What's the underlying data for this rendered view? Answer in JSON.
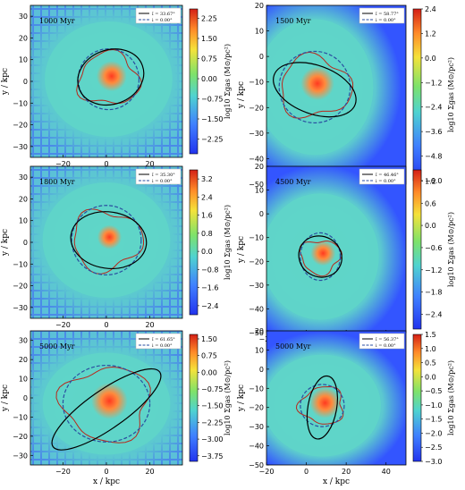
{
  "colors": {
    "outer": "#3355ff",
    "background": "#5fd6c8",
    "core": "#ff5a3c",
    "contour": "#b8281c",
    "fit": "#000000",
    "reference": "#2a4ea0"
  },
  "labels": {
    "xlabel": "x / kpc",
    "ylabel": "y / kpc",
    "colorbar": "log10 Σgas (M⊙/pc²)"
  },
  "chart_data": [
    {
      "type": "heatmap",
      "time_label": "1000 Myr",
      "xlim": [
        -35,
        35
      ],
      "ylim": [
        -35,
        35
      ],
      "xticks": [
        "−20",
        "0",
        "20"
      ],
      "xtick_values": [
        -20,
        0,
        20
      ],
      "yticks": [
        "−30",
        "−20",
        "−10",
        "0",
        "10",
        "20",
        "30"
      ],
      "ytick_values": [
        -30,
        -20,
        -10,
        0,
        10,
        20,
        30
      ],
      "colorbar_ticks": [
        "2.25",
        "1.50",
        "0.75",
        "0.00",
        "−0.75",
        "−1.50",
        "−2.25"
      ],
      "colorbar_range": [
        -2.8,
        2.6
      ],
      "colorbar_tick_values": [
        2.25,
        1.5,
        0.75,
        0,
        -0.75,
        -1.5,
        -2.25
      ],
      "legend": [
        {
          "label": "î = 33.67°",
          "style": "solid"
        },
        {
          "label": "i = 0.00°",
          "style": "dashed"
        }
      ],
      "fit_ellipse": {
        "cx": 2,
        "cy": 2,
        "a": 15.5,
        "b": 12.5,
        "angle": 20
      },
      "ref_ellipse": {
        "cx": 1,
        "cy": 1,
        "a": 14,
        "b": 14,
        "angle": 0
      }
    },
    {
      "type": "heatmap",
      "time_label": "1500 Myr",
      "xlim": [
        -5,
        50
      ],
      "ylim": [
        -50,
        20
      ],
      "xticks": [
        "0",
        "20",
        "40"
      ],
      "xtick_values": [
        0,
        20,
        40
      ],
      "yticks": [
        "−50",
        "−40",
        "−30",
        "−20",
        "−10",
        "0",
        "10",
        "20"
      ],
      "ytick_values": [
        -50,
        -40,
        -30,
        -20,
        -10,
        0,
        10,
        20
      ],
      "colorbar_ticks": [
        "2.4",
        "1.2",
        "0.0",
        "−1.2",
        "−2.4",
        "−3.6",
        "−4.8",
        "−6.0"
      ],
      "colorbar_range": [
        -6,
        2.4
      ],
      "colorbar_tick_values": [
        2.4,
        1.2,
        0,
        -1.2,
        -2.4,
        -3.6,
        -4.8,
        -6
      ],
      "legend": [
        {
          "label": "î = 58.77°",
          "style": "solid"
        },
        {
          "label": "i = 0.00°",
          "style": "dashed"
        }
      ],
      "fit_ellipse": {
        "cx": 14,
        "cy": -13,
        "a": 17,
        "b": 9.5,
        "angle": -20
      },
      "ref_ellipse": {
        "cx": 14,
        "cy": -12,
        "a": 14,
        "b": 14,
        "angle": 0
      }
    },
    {
      "type": "heatmap",
      "time_label": "1800 Myr",
      "xlim": [
        -35,
        35
      ],
      "ylim": [
        -35,
        35
      ],
      "xticks": [
        "−20",
        "0",
        "20"
      ],
      "xtick_values": [
        -20,
        0,
        20
      ],
      "yticks": [
        "−30",
        "−20",
        "−10",
        "0",
        "10",
        "20",
        "30"
      ],
      "ytick_values": [
        -30,
        -20,
        -10,
        0,
        10,
        20,
        30
      ],
      "colorbar_ticks": [
        "3.2",
        "2.4",
        "1.6",
        "0.8",
        "0.0",
        "−0.8",
        "−1.6",
        "−2.4"
      ],
      "colorbar_range": [
        -2.8,
        3.6
      ],
      "colorbar_tick_values": [
        3.2,
        2.4,
        1.6,
        0.8,
        0,
        -0.8,
        -1.6,
        -2.4
      ],
      "legend": [
        {
          "label": "î = 35.30°",
          "style": "solid"
        },
        {
          "label": "i = 0.00°",
          "style": "dashed"
        }
      ],
      "fit_ellipse": {
        "cx": 1,
        "cy": 1,
        "a": 17.5,
        "b": 13,
        "angle": -8
      },
      "ref_ellipse": {
        "cx": 0,
        "cy": 1,
        "a": 16,
        "b": 16,
        "angle": 0
      }
    },
    {
      "type": "heatmap",
      "time_label": "4500 Myr",
      "xlim": [
        -20,
        50
      ],
      "ylim": [
        -50,
        20
      ],
      "xticks": [
        "−20",
        "0",
        "20",
        "40"
      ],
      "xtick_values": [
        -20,
        0,
        20,
        40
      ],
      "yticks": [
        "−50",
        "−40",
        "−30",
        "−20",
        "−10",
        "0",
        "10",
        "20"
      ],
      "ytick_values": [
        -50,
        -40,
        -30,
        -20,
        -10,
        0,
        10,
        20
      ],
      "colorbar_ticks": [
        "1.2",
        "0.6",
        "0.0",
        "−0.6",
        "−1.2",
        "−1.8",
        "−2.4"
      ],
      "colorbar_range": [
        -2.8,
        1.5
      ],
      "colorbar_tick_values": [
        1.2,
        0.6,
        0,
        -0.6,
        -1.2,
        -1.8,
        -2.4
      ],
      "legend": [
        {
          "label": "î = 46.46°",
          "style": "solid"
        },
        {
          "label": "i = 0.00°",
          "style": "dashed"
        }
      ],
      "fit_ellipse": {
        "cx": 7,
        "cy": -18,
        "a": 11,
        "b": 8.5,
        "angle": -30
      },
      "ref_ellipse": {
        "cx": 7,
        "cy": -18,
        "a": 10,
        "b": 10,
        "angle": 0
      }
    },
    {
      "type": "heatmap",
      "time_label": "5000 Myr",
      "xlim": [
        -35,
        35
      ],
      "ylim": [
        -35,
        35
      ],
      "xticks": [
        "−20",
        "0",
        "20"
      ],
      "xtick_values": [
        -20,
        0,
        20
      ],
      "yticks": [
        "−30",
        "−20",
        "−10",
        "0",
        "10",
        "20",
        "30"
      ],
      "ytick_values": [
        -30,
        -20,
        -10,
        0,
        10,
        20,
        30
      ],
      "colorbar_ticks": [
        "1.50",
        "0.75",
        "0.00",
        "−0.75",
        "−1.50",
        "−2.25",
        "−3.00",
        "−3.75"
      ],
      "colorbar_range": [
        -4,
        1.7
      ],
      "colorbar_tick_values": [
        1.5,
        0.75,
        0,
        -0.75,
        -1.5,
        -2.25,
        -3,
        -3.75
      ],
      "legend": [
        {
          "label": "î = 61.65°",
          "style": "solid"
        },
        {
          "label": "i = 0.00°",
          "style": "dashed"
        }
      ],
      "fit_ellipse": {
        "cx": 0,
        "cy": -6,
        "a": 30,
        "b": 10,
        "angle": 35
      },
      "ref_ellipse": {
        "cx": 0,
        "cy": -3,
        "a": 20,
        "b": 20,
        "angle": 0
      }
    },
    {
      "type": "heatmap",
      "time_label": "5000 Myr",
      "xlim": [
        -20,
        50
      ],
      "ylim": [
        -50,
        20
      ],
      "xticks": [
        "−20",
        "0",
        "20",
        "40"
      ],
      "xtick_values": [
        -20,
        0,
        20,
        40
      ],
      "yticks": [
        "−50",
        "−40",
        "−30",
        "−20",
        "−10",
        "0",
        "10",
        "20"
      ],
      "ytick_values": [
        -50,
        -40,
        -30,
        -20,
        -10,
        0,
        10,
        20
      ],
      "colorbar_ticks": [
        "1.5",
        "1.0",
        "0.5",
        "0.0",
        "−0.5",
        "−1.0",
        "−1.5",
        "−2.0",
        "−2.5",
        "−3.0"
      ],
      "colorbar_range": [
        -3,
        1.5
      ],
      "colorbar_tick_values": [
        1.5,
        1,
        0.5,
        0,
        -0.5,
        -1,
        -1.5,
        -2,
        -2.5,
        -3
      ],
      "legend": [
        {
          "label": "î = 56.37°",
          "style": "solid"
        },
        {
          "label": "i = 0.00°",
          "style": "dashed"
        }
      ],
      "fit_ellipse": {
        "cx": 8,
        "cy": -20,
        "a": 16,
        "b": 7.5,
        "angle": 80
      },
      "ref_ellipse": {
        "cx": 8,
        "cy": -19,
        "a": 11,
        "b": 11,
        "angle": 0
      }
    }
  ]
}
